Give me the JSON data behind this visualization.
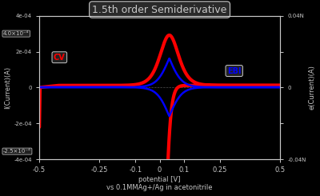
{
  "title": "1.5th order Semiderivative",
  "xlabel_line1": "potential [V]",
  "xlabel_line2": "vs 0.1MMAg+/Ag in acetonitrile",
  "ylabel_right": "e(Current)(A)",
  "background_color": "#000000",
  "text_color": "#c8c8c8",
  "cv_color": "#ff0000",
  "semi_color": "#0000ff",
  "cv_label": "CV",
  "semi_label": "EBI",
  "xlim": [
    -0.5,
    0.5
  ],
  "ylim_main": [
    -0.0004,
    0.0004
  ],
  "E0": 0.04,
  "title_fontsize": 9,
  "label_fontsize": 6,
  "tick_fontsize": 6,
  "ytick_right": [
    "-0.04N",
    "0",
    "0.04N"
  ],
  "ytick_left_top": "4.0e-4",
  "ytick_left_bot": "-2.5e-4",
  "xticks": [
    -0.5,
    -0.25,
    -0.1,
    0,
    0.1,
    0.25,
    0.5
  ]
}
